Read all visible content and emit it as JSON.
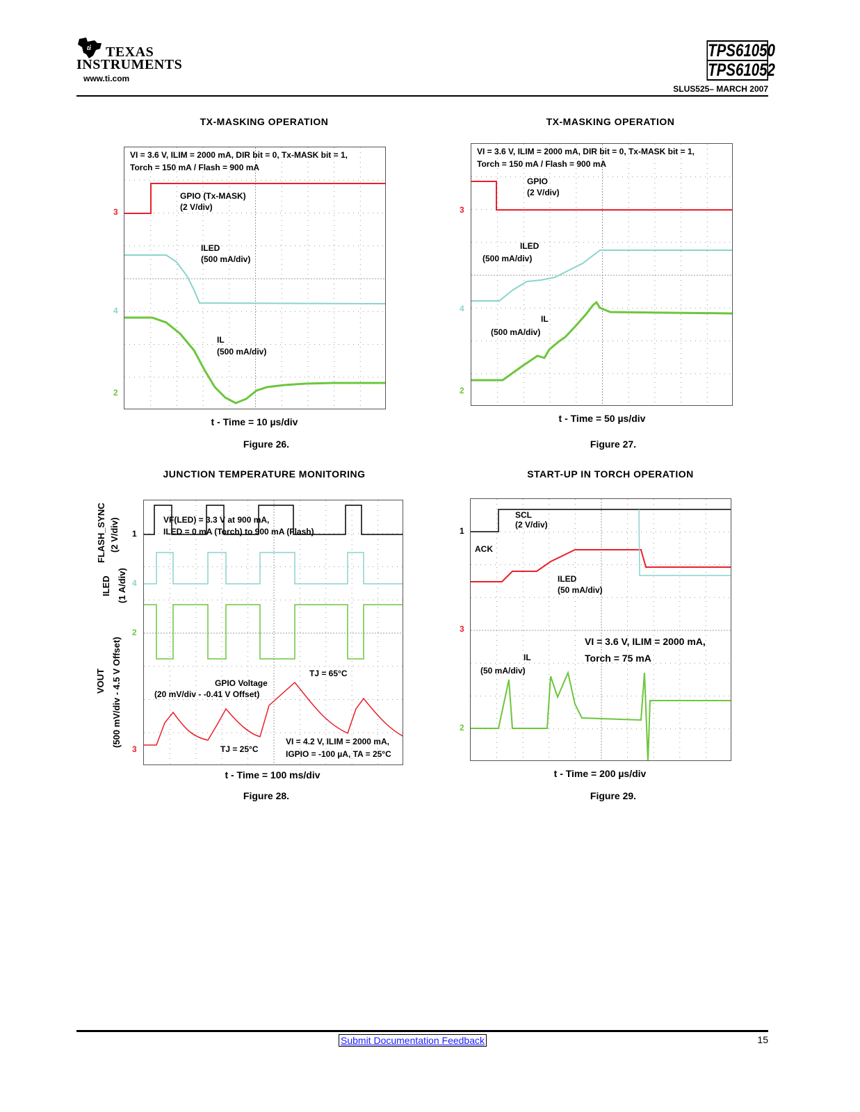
{
  "header": {
    "company_line1": "TEXAS",
    "company_line2": "INSTRUMENTS",
    "website": "www.ti.com",
    "part1": "TPS61050",
    "part2": "TPS61052",
    "doc_ref": "SLUS525– MARCH 2007"
  },
  "figures": [
    {
      "title": "TX-MASKING OPERATION",
      "conditions_line1": "VI = 3.6 V, ILIM = 2000 mA, DIR bit = 0, Tx-MASK bit = 1,",
      "conditions_line2": "Torch = 150 mA / Flash = 900 mA",
      "gpio_label": "GPIO (Tx-MASK)",
      "gpio_scale": "(2 V/div)",
      "iled_label": "ILED",
      "iled_scale": "(500 mA/div)",
      "il_label": "IL",
      "il_scale": "(500 mA/div)",
      "time_axis": "t - Time = 10 µs/div",
      "caption": "Figure 26.",
      "ch_marks": [
        "3",
        "4",
        "2"
      ]
    },
    {
      "title": "TX-MASKING OPERATION",
      "conditions_line1": "VI = 3.6 V, ILIM = 2000 mA, DIR bit = 0, Tx-MASK bit = 1,",
      "conditions_line2": "Torch = 150 mA / Flash = 900 mA",
      "gpio_label": "GPIO",
      "gpio_scale": "(2 V/div)",
      "iled_label": "ILED",
      "iled_scale": "(500 mA/div)",
      "il_label": "IL",
      "il_scale": "(500 mA/div)",
      "time_axis": "t - Time = 50 µs/div",
      "caption": "Figure 27.",
      "ch_marks": [
        "3",
        "4",
        "2"
      ]
    },
    {
      "title": "JUNCTION TEMPERATURE MONITORING",
      "side_flash": "FLASH_SYNC",
      "side_flash_scale": "(2 V/div)",
      "side_iled": "ILED",
      "side_iled_scale": "(1 A/div)",
      "side_vout": "VOUT",
      "side_vout_scale": "(500 mV/div - 4.5 V Offset)",
      "vf_line1": "VF(LED) = 3.3 V at 900 mA,",
      "vf_line2": "ILED = 0 mA (Torch) to 900 mA (Flash)",
      "gpio_voltage": "GPIO Voltage",
      "gpio_voltage_scale": "(20 mV/div - -0.41 V Offset)",
      "tj_high": "TJ = 65°C",
      "tj_low": "TJ = 25°C",
      "cond_line1": "VI = 4.2 V, ILIM = 2000 mA,",
      "cond_line2": "IGPIO = -100 µA, TA = 25°C",
      "time_axis": "t - Time = 100 ms/div",
      "caption": "Figure 28.",
      "ch_marks": [
        "1",
        "4",
        "2",
        "3"
      ]
    },
    {
      "title": "START-UP IN TORCH OPERATION",
      "scl_label": "SCL",
      "scl_scale": "(2 V/div)",
      "ack_label": "ACK",
      "iled_label": "ILED",
      "iled_scale": "(50 mA/div)",
      "cond_line1": "VI = 3.6 V, ILIM = 2000 mA,",
      "cond_line2": "Torch = 75 mA",
      "il_label": "IL",
      "il_scale": "(50 mA/div)",
      "time_axis": "t - Time = 200 µs/div",
      "caption": "Figure 29.",
      "ch_marks": [
        "1",
        "3",
        "2"
      ]
    }
  ],
  "footer": {
    "feedback_link": "Submit Documentation Feedback",
    "page_number": "15"
  },
  "colors": {
    "red": "#e8202a",
    "cyan": "#8ad4cc",
    "green": "#6cc63c",
    "black": "#000000"
  }
}
